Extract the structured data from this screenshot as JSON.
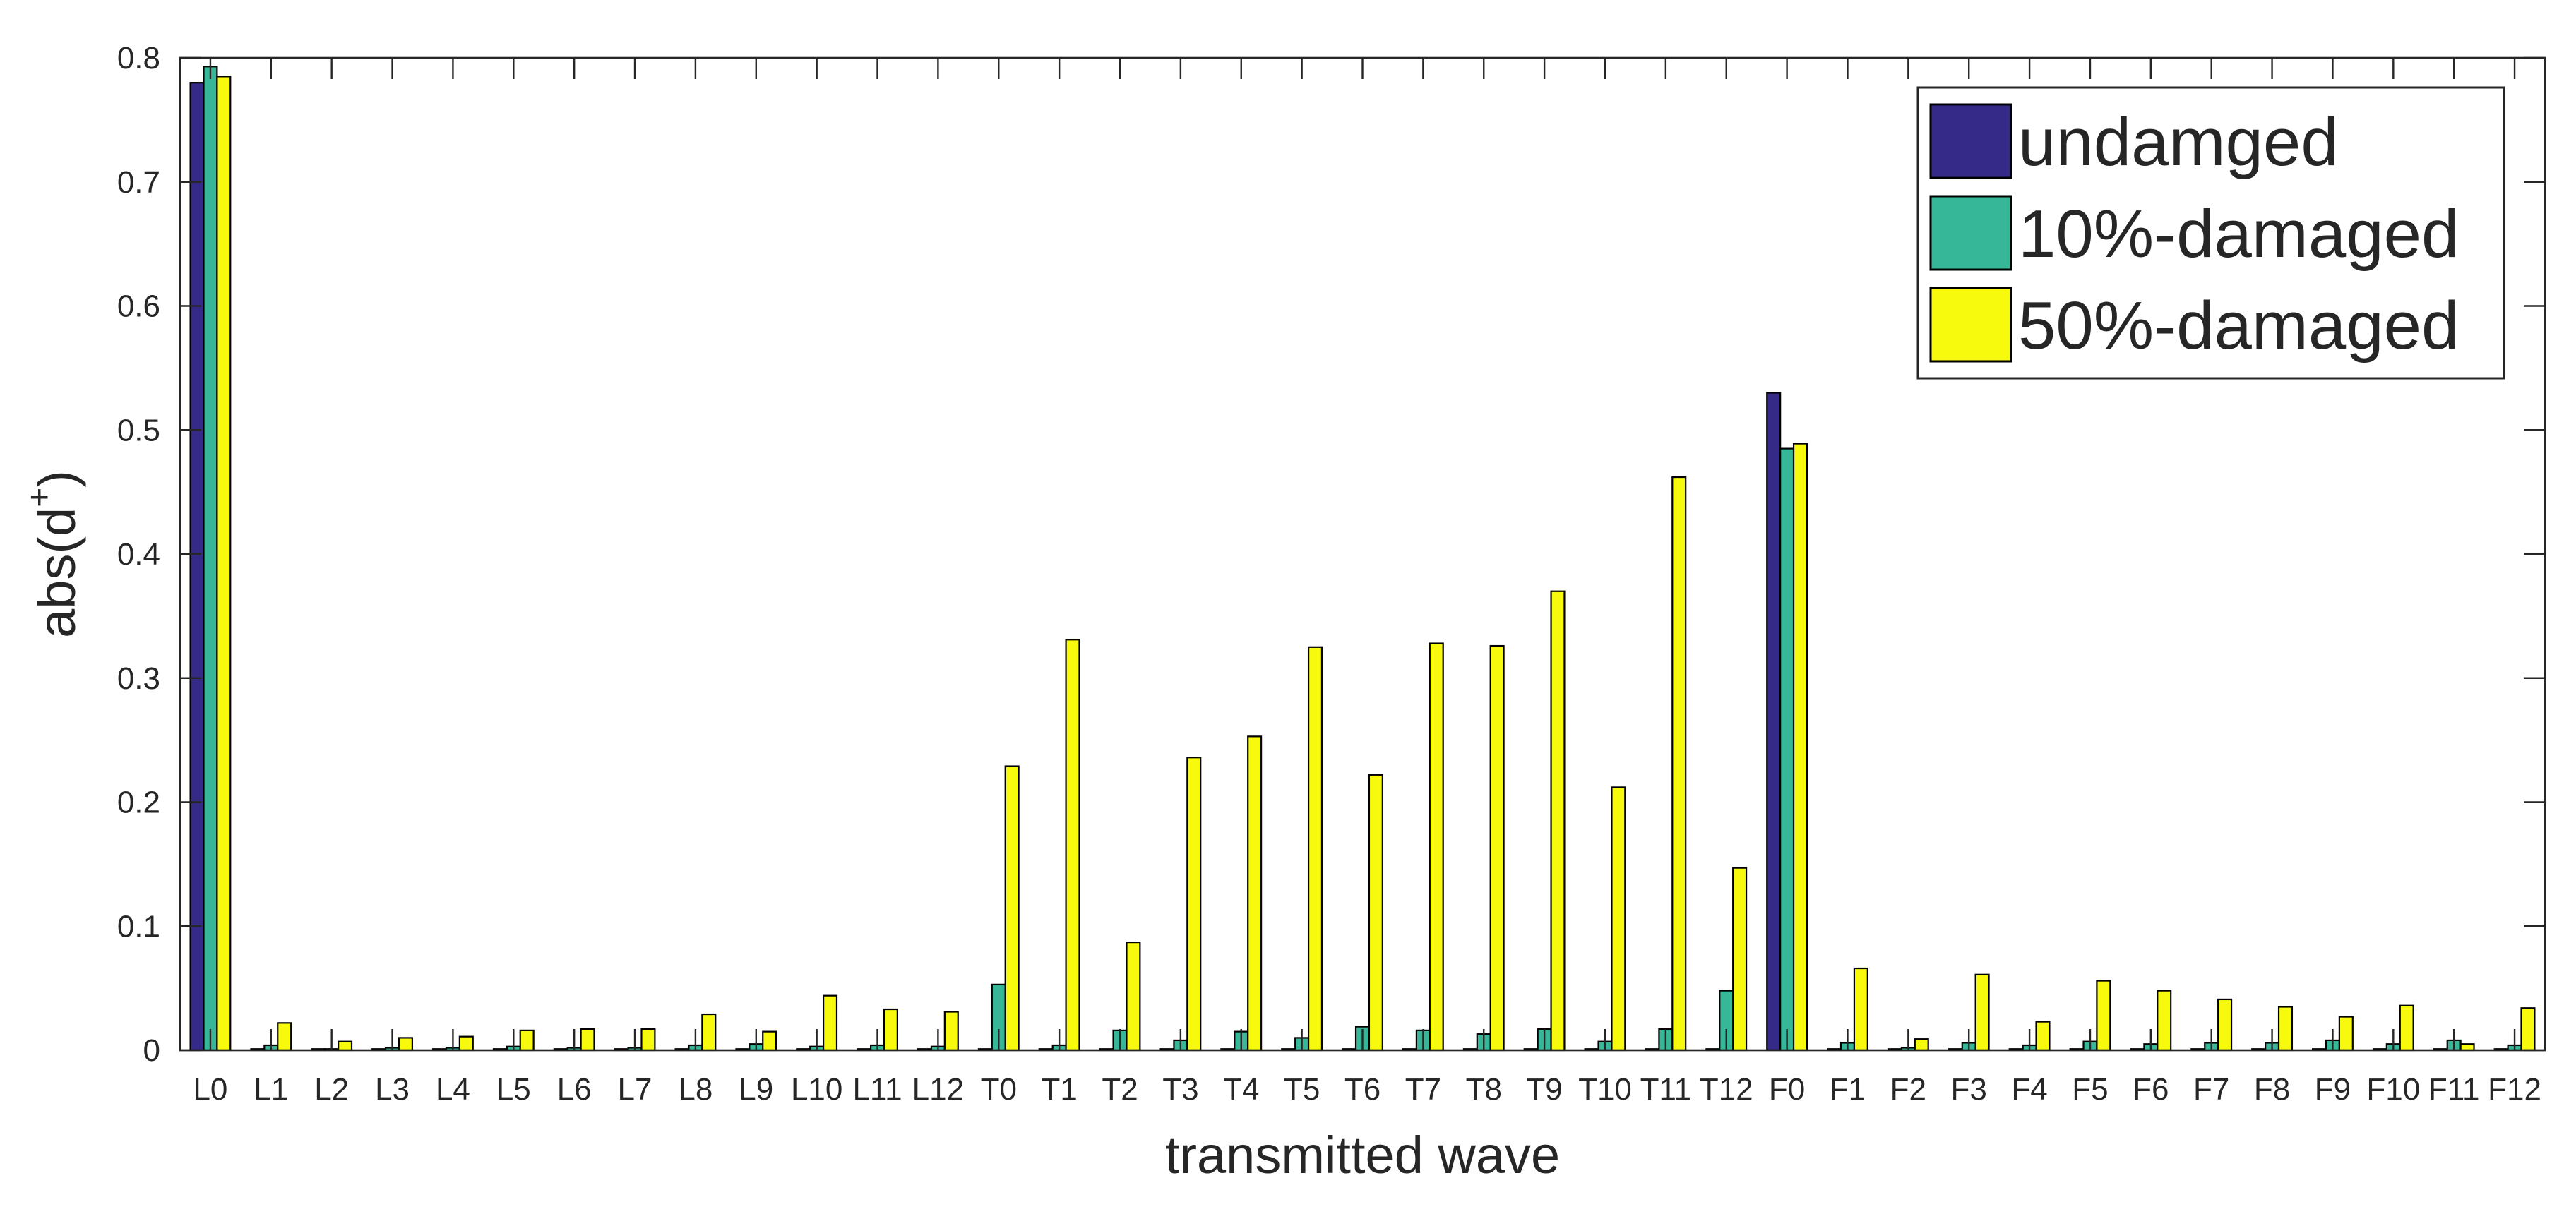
{
  "chart_data": {
    "type": "bar",
    "categories": [
      "L0",
      "L1",
      "L2",
      "L3",
      "L4",
      "L5",
      "L6",
      "L7",
      "L8",
      "L9",
      "L10",
      "L11",
      "L12",
      "T0",
      "T1",
      "T2",
      "T3",
      "T4",
      "T5",
      "T6",
      "T7",
      "T8",
      "T9",
      "T10",
      "T11",
      "T12",
      "F0",
      "F1",
      "F2",
      "F3",
      "F4",
      "F5",
      "F6",
      "F7",
      "F8",
      "F9",
      "F10",
      "F11",
      "F12"
    ],
    "series": [
      {
        "name": "undamged",
        "color": "#352a87",
        "values": [
          0.78,
          0.001,
          0.001,
          0.001,
          0.001,
          0.001,
          0.001,
          0.001,
          0.001,
          0.001,
          0.001,
          0.001,
          0.001,
          0.001,
          0.001,
          0.001,
          0.001,
          0.001,
          0.001,
          0.001,
          0.001,
          0.001,
          0.001,
          0.001,
          0.001,
          0.001,
          0.53,
          0.001,
          0.001,
          0.001,
          0.001,
          0.001,
          0.001,
          0.001,
          0.001,
          0.001,
          0.001,
          0.001,
          0.001
        ]
      },
      {
        "name": "10%-damaged",
        "color": "#36b898",
        "values": [
          0.793,
          0.004,
          0.001,
          0.002,
          0.002,
          0.003,
          0.002,
          0.002,
          0.004,
          0.005,
          0.003,
          0.004,
          0.003,
          0.053,
          0.004,
          0.016,
          0.008,
          0.015,
          0.01,
          0.019,
          0.016,
          0.013,
          0.017,
          0.007,
          0.017,
          0.048,
          0.485,
          0.006,
          0.002,
          0.006,
          0.004,
          0.007,
          0.005,
          0.006,
          0.006,
          0.008,
          0.005,
          0.008,
          0.004
        ]
      },
      {
        "name": "50%-damaged",
        "color": "#f8fa0d",
        "values": [
          0.785,
          0.022,
          0.007,
          0.01,
          0.011,
          0.016,
          0.017,
          0.017,
          0.029,
          0.015,
          0.044,
          0.033,
          0.031,
          0.229,
          0.331,
          0.087,
          0.236,
          0.253,
          0.325,
          0.222,
          0.328,
          0.326,
          0.37,
          0.212,
          0.462,
          0.147,
          0.489,
          0.066,
          0.009,
          0.061,
          0.023,
          0.056,
          0.048,
          0.041,
          0.035,
          0.027,
          0.036,
          0.005,
          0.034
        ]
      }
    ],
    "title": "",
    "xlabel": "transmitted wave",
    "ylabel": "abs(d",
    "ylabel_superscript": "+",
    "ylabel_close": ")",
    "ylim": [
      0,
      0.8
    ],
    "yticks": [
      "0",
      "0.1",
      "0.2",
      "0.3",
      "0.4",
      "0.5",
      "0.6",
      "0.7",
      "0.8"
    ],
    "grid": false,
    "legend_position": "top-right"
  }
}
